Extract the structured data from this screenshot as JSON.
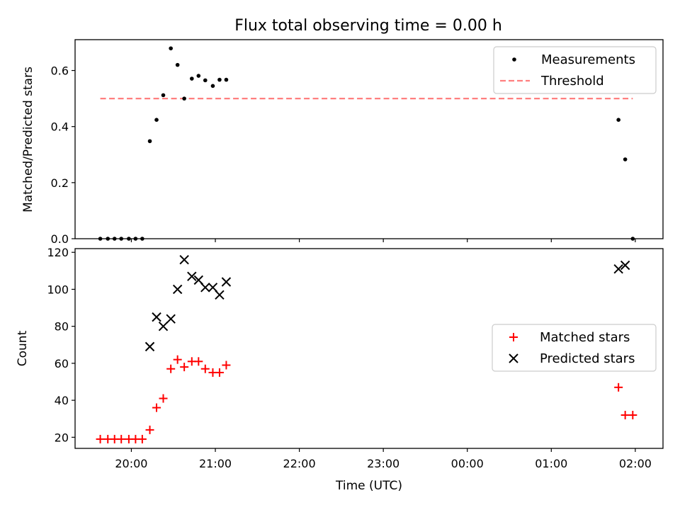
{
  "figure": {
    "title": "Flux total observing time = 0.00 h",
    "xlabel": "Time (UTC)"
  },
  "colors": {
    "measurements": "#000000",
    "threshold": "#ff7f7f",
    "matched": "#ff0000",
    "predicted": "#000000"
  },
  "chart_data": [
    {
      "type": "scatter",
      "panel": "top",
      "xlabel": "",
      "ylabel": "Matched/Predicted stars",
      "x_axis": "time UTC (hours, values past 24 are after midnight)",
      "xlim": [
        19.33,
        26.33
      ],
      "ylim": [
        0,
        0.71
      ],
      "yticks": [
        0.0,
        0.2,
        0.4,
        0.6
      ],
      "ytick_labels": [
        "0.0",
        "0.2",
        "0.4",
        "0.6"
      ],
      "legend": {
        "placement": "upper right",
        "entries": [
          "Measurements",
          "Threshold"
        ]
      },
      "series": [
        {
          "name": "Measurements",
          "marker": "dot",
          "x": [
            19.63,
            19.72,
            19.8,
            19.88,
            19.97,
            20.05,
            20.13,
            20.22,
            20.3,
            20.38,
            20.47,
            20.55,
            20.63,
            20.72,
            20.8,
            20.88,
            20.97,
            21.05,
            21.13,
            25.8,
            25.88,
            25.97
          ],
          "y": [
            0.0,
            0.0,
            0.0,
            0.0,
            0.0,
            0.0,
            0.0,
            0.348,
            0.424,
            0.512,
            0.679,
            0.62,
            0.5,
            0.571,
            0.581,
            0.565,
            0.545,
            0.567,
            0.567,
            0.424,
            0.283,
            0.0
          ]
        },
        {
          "name": "Threshold",
          "style": "dashed",
          "x": [
            19.63,
            25.97
          ],
          "y": [
            0.5,
            0.5
          ]
        }
      ]
    },
    {
      "type": "scatter",
      "panel": "bottom",
      "xlabel": "Time (UTC)",
      "ylabel": "Count",
      "x_axis": "time UTC (hours, values past 24 are after midnight)",
      "xlim": [
        19.33,
        26.33
      ],
      "ylim": [
        14,
        122
      ],
      "xticks": [
        20,
        21,
        22,
        23,
        24,
        25,
        26
      ],
      "xtick_labels": [
        "20:00",
        "21:00",
        "22:00",
        "23:00",
        "00:00",
        "01:00",
        "02:00"
      ],
      "yticks": [
        20,
        40,
        60,
        80,
        100,
        120
      ],
      "ytick_labels": [
        "20",
        "40",
        "60",
        "80",
        "100",
        "120"
      ],
      "legend": {
        "placement": "center right",
        "entries": [
          "Matched stars",
          "Predicted stars"
        ]
      },
      "series": [
        {
          "name": "Matched stars",
          "marker": "plus",
          "x": [
            19.63,
            19.72,
            19.8,
            19.88,
            19.97,
            20.05,
            20.13,
            20.22,
            20.3,
            20.38,
            20.47,
            20.55,
            20.63,
            20.72,
            20.8,
            20.88,
            20.97,
            21.05,
            21.13,
            25.8,
            25.88,
            25.97
          ],
          "y": [
            19,
            19,
            19,
            19,
            19,
            19,
            19,
            24,
            36,
            41,
            57,
            62,
            58,
            61,
            61,
            57,
            55,
            55,
            59,
            47,
            32,
            32
          ]
        },
        {
          "name": "Predicted stars",
          "marker": "x",
          "x": [
            20.22,
            20.3,
            20.38,
            20.47,
            20.55,
            20.63,
            20.72,
            20.8,
            20.88,
            20.97,
            21.05,
            21.13,
            25.8,
            25.88
          ],
          "y": [
            69,
            85,
            80,
            84,
            100,
            116,
            107,
            105,
            101,
            101,
            97,
            104,
            111,
            113
          ]
        }
      ]
    }
  ]
}
